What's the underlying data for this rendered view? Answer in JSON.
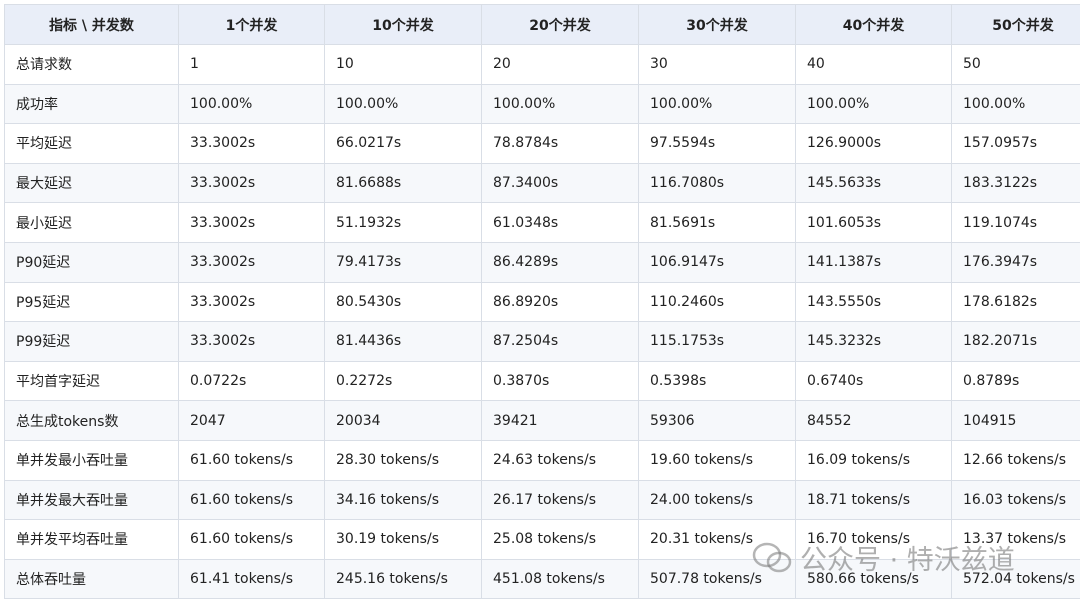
{
  "table": {
    "header": [
      "指标 \\ 并发数",
      "1个并发",
      "10个并发",
      "20个并发",
      "30个并发",
      "40个并发",
      "50个并发"
    ],
    "rows": [
      [
        "总请求数",
        "1",
        "10",
        "20",
        "30",
        "40",
        "50"
      ],
      [
        "成功率",
        "100.00%",
        "100.00%",
        "100.00%",
        "100.00%",
        "100.00%",
        "100.00%"
      ],
      [
        "平均延迟",
        "33.3002s",
        "66.0217s",
        "78.8784s",
        "97.5594s",
        "126.9000s",
        "157.0957s"
      ],
      [
        "最大延迟",
        "33.3002s",
        "81.6688s",
        "87.3400s",
        "116.7080s",
        "145.5633s",
        "183.3122s"
      ],
      [
        "最小延迟",
        "33.3002s",
        "51.1932s",
        "61.0348s",
        "81.5691s",
        "101.6053s",
        "119.1074s"
      ],
      [
        "P90延迟",
        "33.3002s",
        "79.4173s",
        "86.4289s",
        "106.9147s",
        "141.1387s",
        "176.3947s"
      ],
      [
        "P95延迟",
        "33.3002s",
        "80.5430s",
        "86.8920s",
        "110.2460s",
        "143.5550s",
        "178.6182s"
      ],
      [
        "P99延迟",
        "33.3002s",
        "81.4436s",
        "87.2504s",
        "115.1753s",
        "145.3232s",
        "182.2071s"
      ],
      [
        "平均首字延迟",
        "0.0722s",
        "0.2272s",
        "0.3870s",
        "0.5398s",
        "0.6740s",
        "0.8789s"
      ],
      [
        "总生成tokens数",
        "2047",
        "20034",
        "39421",
        "59306",
        "84552",
        "104915"
      ],
      [
        "单并发最小吞吐量",
        "61.60 tokens/s",
        "28.30 tokens/s",
        "24.63 tokens/s",
        "19.60 tokens/s",
        "16.09 tokens/s",
        "12.66 tokens/s"
      ],
      [
        "单并发最大吞吐量",
        "61.60 tokens/s",
        "34.16 tokens/s",
        "26.17 tokens/s",
        "24.00 tokens/s",
        "18.71 tokens/s",
        "16.03 tokens/s"
      ],
      [
        "单并发平均吞吐量",
        "61.60 tokens/s",
        "30.19 tokens/s",
        "25.08 tokens/s",
        "20.31 tokens/s",
        "16.70 tokens/s",
        "13.37 tokens/s"
      ],
      [
        "总体吞吐量",
        "61.41 tokens/s",
        "245.16 tokens/s",
        "451.08 tokens/s",
        "507.78 tokens/s",
        "580.66 tokens/s",
        "572.04 tokens/s"
      ]
    ]
  },
  "watermark": "公众号 · 特沃兹道"
}
